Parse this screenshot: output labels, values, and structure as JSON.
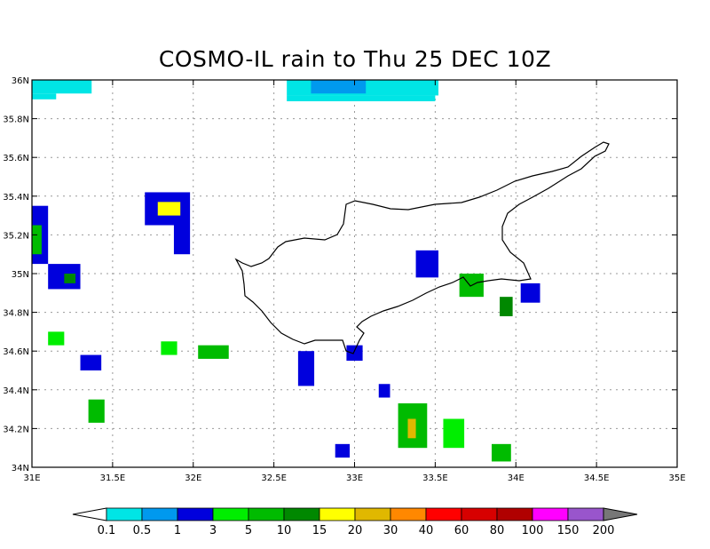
{
  "title": "COSMO-IL rain to Thu 25 DEC 10Z",
  "lon_ticks": [
    "31E",
    "31.5E",
    "32E",
    "32.5E",
    "33E",
    "33.5E",
    "34E",
    "34.5E",
    "35E"
  ],
  "lat_ticks": [
    "34N",
    "34.2N",
    "34.4N",
    "34.6N",
    "34.8N",
    "35N",
    "35.2N",
    "35.4N",
    "35.6N",
    "35.8N",
    "36N"
  ],
  "colorbar": {
    "labels": [
      "0.1",
      "0.5",
      "1",
      "3",
      "5",
      "10",
      "15",
      "20",
      "30",
      "40",
      "60",
      "80",
      "100",
      "150",
      "200"
    ],
    "colors": [
      "#00e5e5",
      "#0099ee",
      "#0000dd",
      "#00ee00",
      "#00bb00",
      "#008800",
      "#ffff00",
      "#e0b800",
      "#ff8800",
      "#ff0000",
      "#d70000",
      "#b00000",
      "#ff00ff",
      "#9955cc"
    ]
  },
  "chart_data": {
    "type": "heatmap",
    "title": "COSMO-IL rain to Thu 25 DEC 10Z",
    "xlim": [
      31,
      35
    ],
    "ylim": [
      34,
      36
    ],
    "grid": true,
    "levels": [
      0.1,
      0.5,
      1,
      3,
      5,
      10,
      15,
      20,
      30,
      40,
      60,
      80,
      100,
      150,
      200
    ],
    "rain_cells": [
      {
        "lon": [
          31.0,
          31.37
        ],
        "lat": [
          35.93,
          36.0
        ],
        "level": 0
      },
      {
        "lon": [
          31.0,
          31.15
        ],
        "lat": [
          35.9,
          35.93
        ],
        "level": 0
      },
      {
        "lon": [
          32.58,
          33.52
        ],
        "lat": [
          35.92,
          36.0
        ],
        "level": 0
      },
      {
        "lon": [
          32.58,
          33.5
        ],
        "lat": [
          35.89,
          35.92
        ],
        "level": 0
      },
      {
        "lon": [
          32.73,
          33.07
        ],
        "lat": [
          35.93,
          36.0
        ],
        "level": 1
      },
      {
        "lon": [
          31.0,
          31.1
        ],
        "lat": [
          35.05,
          35.35
        ],
        "level": 2
      },
      {
        "lon": [
          31.0,
          31.06
        ],
        "lat": [
          35.1,
          35.25
        ],
        "level": 4
      },
      {
        "lon": [
          31.1,
          31.3
        ],
        "lat": [
          34.92,
          35.05
        ],
        "level": 2
      },
      {
        "lon": [
          31.2,
          31.27
        ],
        "lat": [
          34.95,
          35.0
        ],
        "level": 5
      },
      {
        "lon": [
          31.7,
          31.98
        ],
        "lat": [
          35.25,
          35.42
        ],
        "level": 2
      },
      {
        "lon": [
          31.78,
          31.92
        ],
        "lat": [
          35.3,
          35.37
        ],
        "level": 6
      },
      {
        "lon": [
          31.88,
          31.98
        ],
        "lat": [
          35.1,
          35.25
        ],
        "level": 2
      },
      {
        "lon": [
          31.1,
          31.2
        ],
        "lat": [
          34.63,
          34.7
        ],
        "level": 3
      },
      {
        "lon": [
          31.3,
          31.43
        ],
        "lat": [
          34.5,
          34.58
        ],
        "level": 2
      },
      {
        "lon": [
          31.35,
          31.45
        ],
        "lat": [
          34.23,
          34.35
        ],
        "level": 4
      },
      {
        "lon": [
          31.8,
          31.9
        ],
        "lat": [
          34.58,
          34.65
        ],
        "level": 3
      },
      {
        "lon": [
          32.03,
          32.22
        ],
        "lat": [
          34.56,
          34.63
        ],
        "level": 4
      },
      {
        "lon": [
          32.65,
          32.75
        ],
        "lat": [
          34.42,
          34.6
        ],
        "level": 2
      },
      {
        "lon": [
          33.38,
          33.52
        ],
        "lat": [
          34.98,
          35.12
        ],
        "level": 2
      },
      {
        "lon": [
          33.65,
          33.8
        ],
        "lat": [
          34.88,
          35.0
        ],
        "level": 4
      },
      {
        "lon": [
          33.9,
          33.98
        ],
        "lat": [
          34.78,
          34.88
        ],
        "level": 5
      },
      {
        "lon": [
          34.03,
          34.15
        ],
        "lat": [
          34.85,
          34.95
        ],
        "level": 2
      },
      {
        "lon": [
          33.15,
          33.22
        ],
        "lat": [
          34.36,
          34.43
        ],
        "level": 2
      },
      {
        "lon": [
          33.27,
          33.45
        ],
        "lat": [
          34.1,
          34.33
        ],
        "level": 4
      },
      {
        "lon": [
          33.33,
          33.38
        ],
        "lat": [
          34.15,
          34.25
        ],
        "level": 7
      },
      {
        "lon": [
          33.55,
          33.68
        ],
        "lat": [
          34.1,
          34.25
        ],
        "level": 3
      },
      {
        "lon": [
          33.85,
          33.97
        ],
        "lat": [
          34.03,
          34.12
        ],
        "level": 4
      },
      {
        "lon": [
          32.88,
          32.97
        ],
        "lat": [
          34.05,
          34.12
        ],
        "level": 2
      },
      {
        "lon": [
          32.95,
          33.05
        ],
        "lat": [
          34.55,
          34.63
        ],
        "level": 2
      }
    ]
  }
}
